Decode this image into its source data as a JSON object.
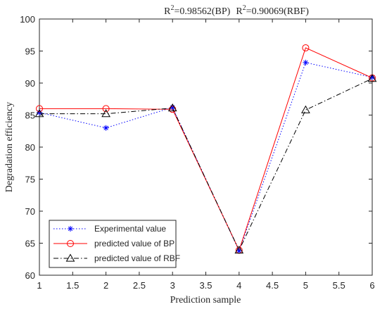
{
  "chart_data": {
    "type": "line",
    "title": "R2=0.98562(BP)  R2=0.90069(RBF)",
    "title_parts": {
      "r1": "R",
      "sup1": "2",
      "text1": "=0.98562(BP)",
      "r2": "R",
      "sup2": "2",
      "text2": "=0.90069(RBF)"
    },
    "xlabel": "Prediction sample",
    "ylabel": "Degradation efficiency",
    "xlim": [
      1,
      6
    ],
    "ylim": [
      60,
      100
    ],
    "x_ticks": [
      1,
      1.5,
      2,
      2.5,
      3,
      3.5,
      4,
      4.5,
      5,
      5.5,
      6
    ],
    "x_tick_labels": [
      "1",
      "1.5",
      "2",
      "2.5",
      "3",
      "3.5",
      "4",
      "4.5",
      "5",
      "5.5",
      "6"
    ],
    "y_ticks": [
      60,
      65,
      70,
      75,
      80,
      85,
      90,
      95,
      100
    ],
    "y_tick_labels": [
      "60",
      "65",
      "70",
      "75",
      "80",
      "85",
      "90",
      "95",
      "100"
    ],
    "grid": false,
    "legend_position": "bottom-left",
    "x": [
      1,
      2,
      3,
      4,
      5,
      6
    ],
    "series": [
      {
        "name": "Experimental value",
        "values": [
          85.4,
          83.0,
          86.2,
          63.8,
          93.2,
          90.9
        ],
        "color": "#0000ff",
        "line_style": "dotted",
        "marker": "asterisk"
      },
      {
        "name": "predicted value of BP",
        "values": [
          86.0,
          86.0,
          85.9,
          63.9,
          95.5,
          90.8
        ],
        "color": "#ff0000",
        "line_style": "solid",
        "marker": "circle"
      },
      {
        "name": "predicted value of RBF",
        "values": [
          85.2,
          85.2,
          86.1,
          63.9,
          85.8,
          90.7
        ],
        "color": "#000000",
        "line_style": "dashdot",
        "marker": "triangle"
      }
    ]
  }
}
